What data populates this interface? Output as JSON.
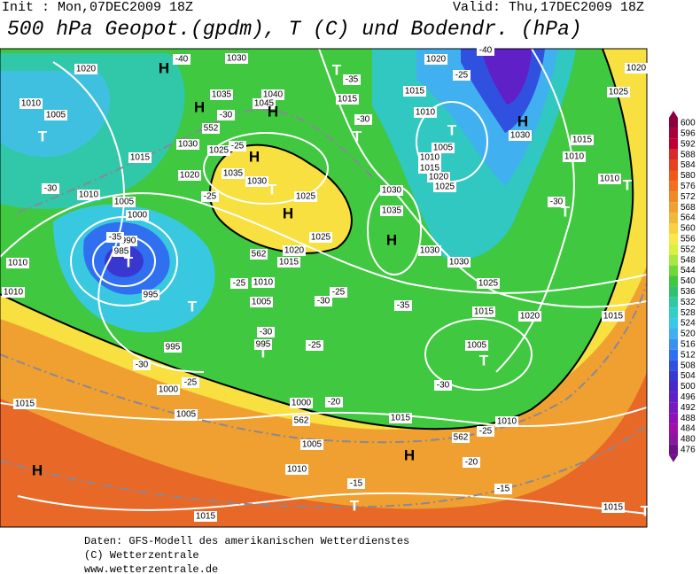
{
  "header": {
    "init": "Init : Mon,07DEC2009 18Z",
    "valid": "Valid: Thu,17DEC2009 18Z",
    "title": "500 hPa Geopot.(gpdm), T (C) und Bodendr. (hPa)"
  },
  "colorbar": {
    "values": [
      600,
      596,
      592,
      588,
      584,
      580,
      576,
      572,
      568,
      564,
      560,
      556,
      552,
      548,
      544,
      540,
      536,
      532,
      528,
      524,
      520,
      516,
      512,
      508,
      504,
      500,
      496,
      492,
      488,
      484,
      480,
      476
    ],
    "colors": [
      "#8c0040",
      "#a80038",
      "#c00030",
      "#d82828",
      "#e84020",
      "#f05818",
      "#f07020",
      "#f08828",
      "#f0a030",
      "#f0b838",
      "#f8d040",
      "#f8e848",
      "#d8f040",
      "#a8e840",
      "#70d838",
      "#40c840",
      "#30c070",
      "#30c8a0",
      "#30d0c8",
      "#38c8e8",
      "#40b0f0",
      "#3890f0",
      "#3070f0",
      "#3050e0",
      "#3838d0",
      "#4828c8",
      "#6020c8",
      "#7818c0",
      "#9010b8",
      "#a010a8",
      "#8818a0",
      "#701088"
    ]
  },
  "map": {
    "labels": [
      "H",
      "T",
      "1020",
      "1010",
      "1005",
      "1015",
      "1010",
      "1005",
      "1000",
      "990",
      "985",
      "T",
      "995",
      "T",
      "995",
      "1000",
      "1005",
      "1015",
      "H",
      "1010",
      "1010",
      "1030",
      "1035",
      "1040",
      "1045",
      "H",
      "H",
      "1030",
      "1025",
      "1020",
      "H",
      "1035",
      "1030",
      "T",
      "1025",
      "H",
      "1025",
      "1020",
      "1015",
      "1010",
      "1005",
      "995",
      "T",
      "1000",
      "1005",
      "1010",
      "1015",
      "T",
      "H",
      "1015",
      "1010",
      "T",
      "1015",
      "T",
      "1030",
      "1035",
      "H",
      "1030",
      "1030",
      "1020",
      "1015",
      "1010",
      "T",
      "1005",
      "1010",
      "1015",
      "1020",
      "1025",
      "1025",
      "1015",
      "1020",
      "1005",
      "T",
      "1025",
      "1015",
      "1010",
      "1010",
      "T",
      "T",
      "1015",
      "H",
      "1030",
      "1015",
      "T",
      "1020",
      "-40",
      "-30",
      "-25",
      "-25",
      "-30",
      "-25",
      "-30",
      "-25",
      "-30",
      "-25",
      "-35",
      "-30",
      "-25",
      "-20",
      "-15",
      "-15",
      "-20",
      "-40",
      "-35",
      "-30",
      "-25",
      "-30",
      "-35",
      "-30",
      "-25",
      "552",
      "562",
      "562",
      "562"
    ]
  },
  "footer": {
    "lines": [
      "Daten: GFS-Modell des amerikanischen Wetterdienstes",
      "(C) Wetterzentrale",
      "www.wetterzentrale.de"
    ]
  }
}
